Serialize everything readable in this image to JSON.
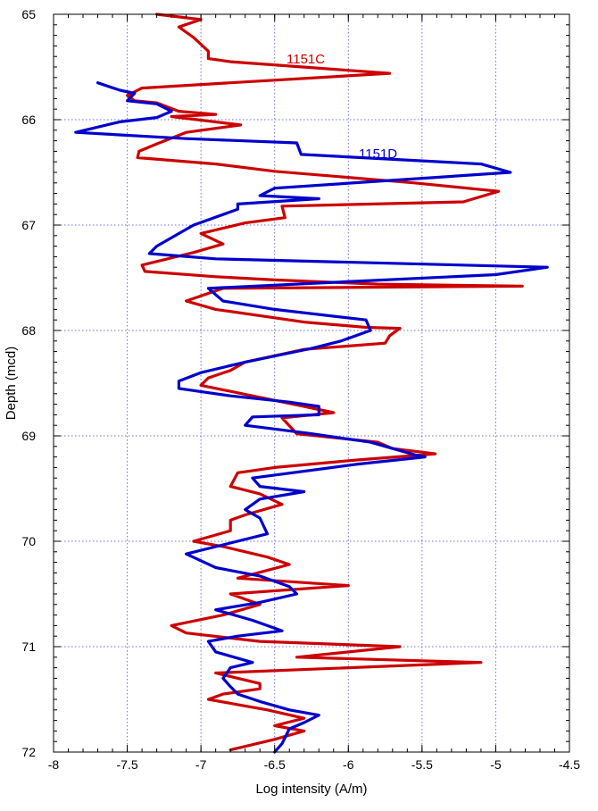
{
  "chart_data": {
    "type": "line",
    "orientation": "depth-profile",
    "xlabel": "Log intensity (A/m)",
    "ylabel": "Depth (mcd)",
    "xlim": [
      -8,
      -4.5
    ],
    "ylim": [
      65,
      72
    ],
    "y_inverted": true,
    "x_ticks": [
      "-8",
      "-7.5",
      "-7",
      "-6.5",
      "-6",
      "-5.5",
      "-5",
      "-4.5"
    ],
    "y_ticks": [
      "65",
      "66",
      "67",
      "68",
      "69",
      "70",
      "71",
      "72"
    ],
    "grid": true,
    "grid_color": "#6f6fe0",
    "series": [
      {
        "name": "1151C",
        "color": "#cc0000",
        "points": [
          [
            -7.3,
            65.0
          ],
          [
            -7.0,
            65.05
          ],
          [
            -7.15,
            65.12
          ],
          [
            -7.05,
            65.22
          ],
          [
            -6.95,
            65.35
          ],
          [
            -6.95,
            65.42
          ],
          [
            -6.8,
            65.45
          ],
          [
            -5.72,
            65.56
          ],
          [
            -7.4,
            65.7
          ],
          [
            -7.5,
            65.77
          ],
          [
            -7.45,
            65.82
          ],
          [
            -7.3,
            65.84
          ],
          [
            -7.15,
            65.92
          ],
          [
            -6.9,
            65.95
          ],
          [
            -7.2,
            65.97
          ],
          [
            -6.73,
            66.05
          ],
          [
            -7.1,
            66.12
          ],
          [
            -7.3,
            66.23
          ],
          [
            -7.42,
            66.3
          ],
          [
            -7.43,
            66.36
          ],
          [
            -6.9,
            66.42
          ],
          [
            -6.5,
            66.49
          ],
          [
            -5.55,
            66.6
          ],
          [
            -4.98,
            66.68
          ],
          [
            -5.22,
            66.78
          ],
          [
            -6.45,
            66.82
          ],
          [
            -6.43,
            66.93
          ],
          [
            -6.7,
            66.98
          ],
          [
            -7.0,
            67.08
          ],
          [
            -6.85,
            67.18
          ],
          [
            -7.05,
            67.26
          ],
          [
            -7.4,
            67.38
          ],
          [
            -7.38,
            67.44
          ],
          [
            -6.9,
            67.49
          ],
          [
            -6.5,
            67.52
          ],
          [
            -5.8,
            67.56
          ],
          [
            -4.82,
            67.58
          ],
          [
            -6.85,
            67.6
          ],
          [
            -7.1,
            67.72
          ],
          [
            -6.9,
            67.8
          ],
          [
            -6.3,
            67.92
          ],
          [
            -5.88,
            67.97
          ],
          [
            -5.65,
            67.98
          ],
          [
            -5.72,
            68.05
          ],
          [
            -5.75,
            68.12
          ],
          [
            -6.3,
            68.18
          ],
          [
            -6.7,
            68.3
          ],
          [
            -6.8,
            68.38
          ],
          [
            -6.95,
            68.45
          ],
          [
            -7.0,
            68.52
          ],
          [
            -6.65,
            68.62
          ],
          [
            -6.3,
            68.72
          ],
          [
            -6.1,
            68.78
          ],
          [
            -6.45,
            68.83
          ],
          [
            -6.35,
            68.98
          ],
          [
            -5.8,
            69.06
          ],
          [
            -5.7,
            69.12
          ],
          [
            -5.41,
            69.17
          ],
          [
            -5.95,
            69.23
          ],
          [
            -6.5,
            69.3
          ],
          [
            -6.75,
            69.35
          ],
          [
            -6.8,
            69.48
          ],
          [
            -6.6,
            69.55
          ],
          [
            -6.45,
            69.65
          ],
          [
            -6.7,
            69.75
          ],
          [
            -6.8,
            69.8
          ],
          [
            -6.8,
            69.9
          ],
          [
            -7.05,
            70.0
          ],
          [
            -6.85,
            70.05
          ],
          [
            -6.55,
            70.15
          ],
          [
            -6.4,
            70.22
          ],
          [
            -6.75,
            70.35
          ],
          [
            -6.0,
            70.42
          ],
          [
            -6.8,
            70.5
          ],
          [
            -6.6,
            70.6
          ],
          [
            -6.85,
            70.7
          ],
          [
            -7.2,
            70.8
          ],
          [
            -7.1,
            70.87
          ],
          [
            -6.6,
            70.95
          ],
          [
            -5.65,
            71.0
          ],
          [
            -6.35,
            71.1
          ],
          [
            -5.1,
            71.15
          ],
          [
            -6.9,
            71.25
          ],
          [
            -6.6,
            71.35
          ],
          [
            -6.6,
            71.4
          ],
          [
            -6.85,
            71.45
          ],
          [
            -6.95,
            71.5
          ],
          [
            -6.75,
            71.55
          ],
          [
            -6.55,
            71.6
          ],
          [
            -6.3,
            71.68
          ],
          [
            -6.5,
            71.75
          ],
          [
            -6.3,
            71.8
          ],
          [
            -6.5,
            71.88
          ],
          [
            -6.8,
            71.98
          ]
        ],
        "label_text": "1151C"
      },
      {
        "name": "1151D",
        "color": "#0000cc",
        "points": [
          [
            -7.7,
            65.65
          ],
          [
            -7.55,
            65.72
          ],
          [
            -7.45,
            65.75
          ],
          [
            -7.5,
            65.82
          ],
          [
            -7.3,
            65.85
          ],
          [
            -7.2,
            65.92
          ],
          [
            -7.3,
            65.98
          ],
          [
            -7.55,
            66.02
          ],
          [
            -7.85,
            66.12
          ],
          [
            -7.1,
            66.18
          ],
          [
            -6.35,
            66.22
          ],
          [
            -6.32,
            66.33
          ],
          [
            -5.1,
            66.42
          ],
          [
            -4.9,
            66.5
          ],
          [
            -6.5,
            66.65
          ],
          [
            -6.6,
            66.72
          ],
          [
            -6.2,
            66.75
          ],
          [
            -6.75,
            66.8
          ],
          [
            -6.75,
            66.85
          ],
          [
            -7.05,
            67.0
          ],
          [
            -7.3,
            67.2
          ],
          [
            -7.35,
            67.27
          ],
          [
            -6.9,
            67.32
          ],
          [
            -4.65,
            67.4
          ],
          [
            -5.0,
            67.47
          ],
          [
            -6.95,
            67.6
          ],
          [
            -6.85,
            67.72
          ],
          [
            -6.5,
            67.8
          ],
          [
            -5.88,
            67.9
          ],
          [
            -5.85,
            68.0
          ],
          [
            -6.05,
            68.1
          ],
          [
            -6.25,
            68.17
          ],
          [
            -6.7,
            68.3
          ],
          [
            -7.0,
            68.4
          ],
          [
            -7.15,
            68.48
          ],
          [
            -7.15,
            68.55
          ],
          [
            -6.8,
            68.62
          ],
          [
            -6.4,
            68.68
          ],
          [
            -6.2,
            68.72
          ],
          [
            -6.2,
            68.8
          ],
          [
            -6.65,
            68.82
          ],
          [
            -6.7,
            68.9
          ],
          [
            -6.25,
            68.98
          ],
          [
            -5.85,
            69.06
          ],
          [
            -5.55,
            69.18
          ],
          [
            -5.48,
            69.2
          ],
          [
            -5.95,
            69.27
          ],
          [
            -6.65,
            69.4
          ],
          [
            -6.6,
            69.48
          ],
          [
            -6.3,
            69.53
          ],
          [
            -6.6,
            69.6
          ],
          [
            -6.7,
            69.7
          ],
          [
            -6.6,
            69.78
          ],
          [
            -6.55,
            69.93
          ],
          [
            -7.1,
            70.12
          ],
          [
            -6.9,
            70.25
          ],
          [
            -6.6,
            70.33
          ],
          [
            -6.4,
            70.43
          ],
          [
            -6.35,
            70.5
          ],
          [
            -6.6,
            70.58
          ],
          [
            -6.9,
            70.65
          ],
          [
            -6.65,
            70.75
          ],
          [
            -6.45,
            70.85
          ],
          [
            -6.75,
            70.9
          ],
          [
            -6.95,
            70.95
          ],
          [
            -6.9,
            71.05
          ],
          [
            -6.65,
            71.15
          ],
          [
            -6.8,
            71.2
          ],
          [
            -6.85,
            71.3
          ],
          [
            -6.8,
            71.38
          ],
          [
            -6.75,
            71.45
          ],
          [
            -6.6,
            71.52
          ],
          [
            -6.4,
            71.6
          ],
          [
            -6.2,
            71.65
          ],
          [
            -6.3,
            71.72
          ],
          [
            -6.4,
            71.78
          ],
          [
            -6.45,
            71.92
          ],
          [
            -6.5,
            72.0
          ]
        ],
        "label_text": "1151D"
      }
    ]
  }
}
